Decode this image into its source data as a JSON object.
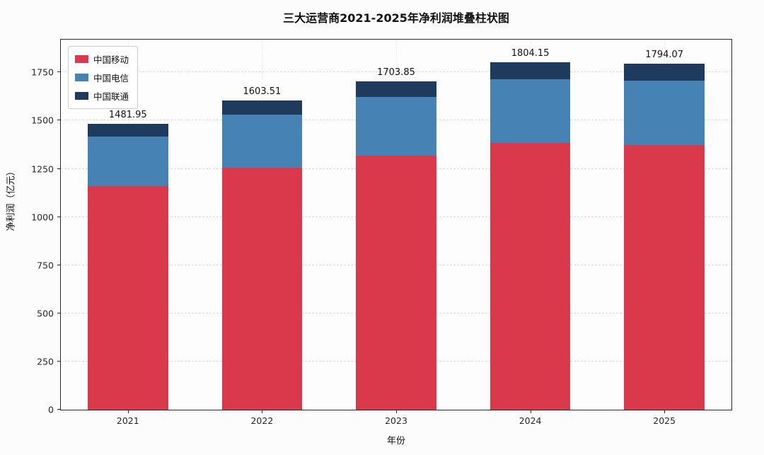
{
  "chart_data": {
    "type": "bar",
    "stacked": true,
    "title": "三大运营商2021-2025年净利润堆叠柱状图",
    "xlabel": "年份",
    "ylabel": "净利润（亿元）",
    "categories": [
      "2021",
      "2022",
      "2023",
      "2024",
      "2025"
    ],
    "series": [
      {
        "name": "中国移动",
        "color": "#d9394a",
        "values": [
          1159.37,
          1254.59,
          1317.66,
          1383.97,
          1373.0
        ]
      },
      {
        "name": "中国电信",
        "color": "#4682b4",
        "values": [
          259.52,
          275.93,
          304.46,
          330.12,
          333.8
        ]
      },
      {
        "name": "中国联通",
        "color": "#1e3a5c",
        "values": [
          63.06,
          72.99,
          81.73,
          90.06,
          87.27
        ]
      }
    ],
    "totals": [
      1481.95,
      1603.51,
      1703.85,
      1804.15,
      1794.07
    ],
    "yticks": [
      0,
      250,
      500,
      750,
      1000,
      1250,
      1500,
      1750
    ],
    "ylim": [
      0,
      1920
    ],
    "grid": true,
    "legend_position": "upper left",
    "bar_width_pct": 12
  }
}
